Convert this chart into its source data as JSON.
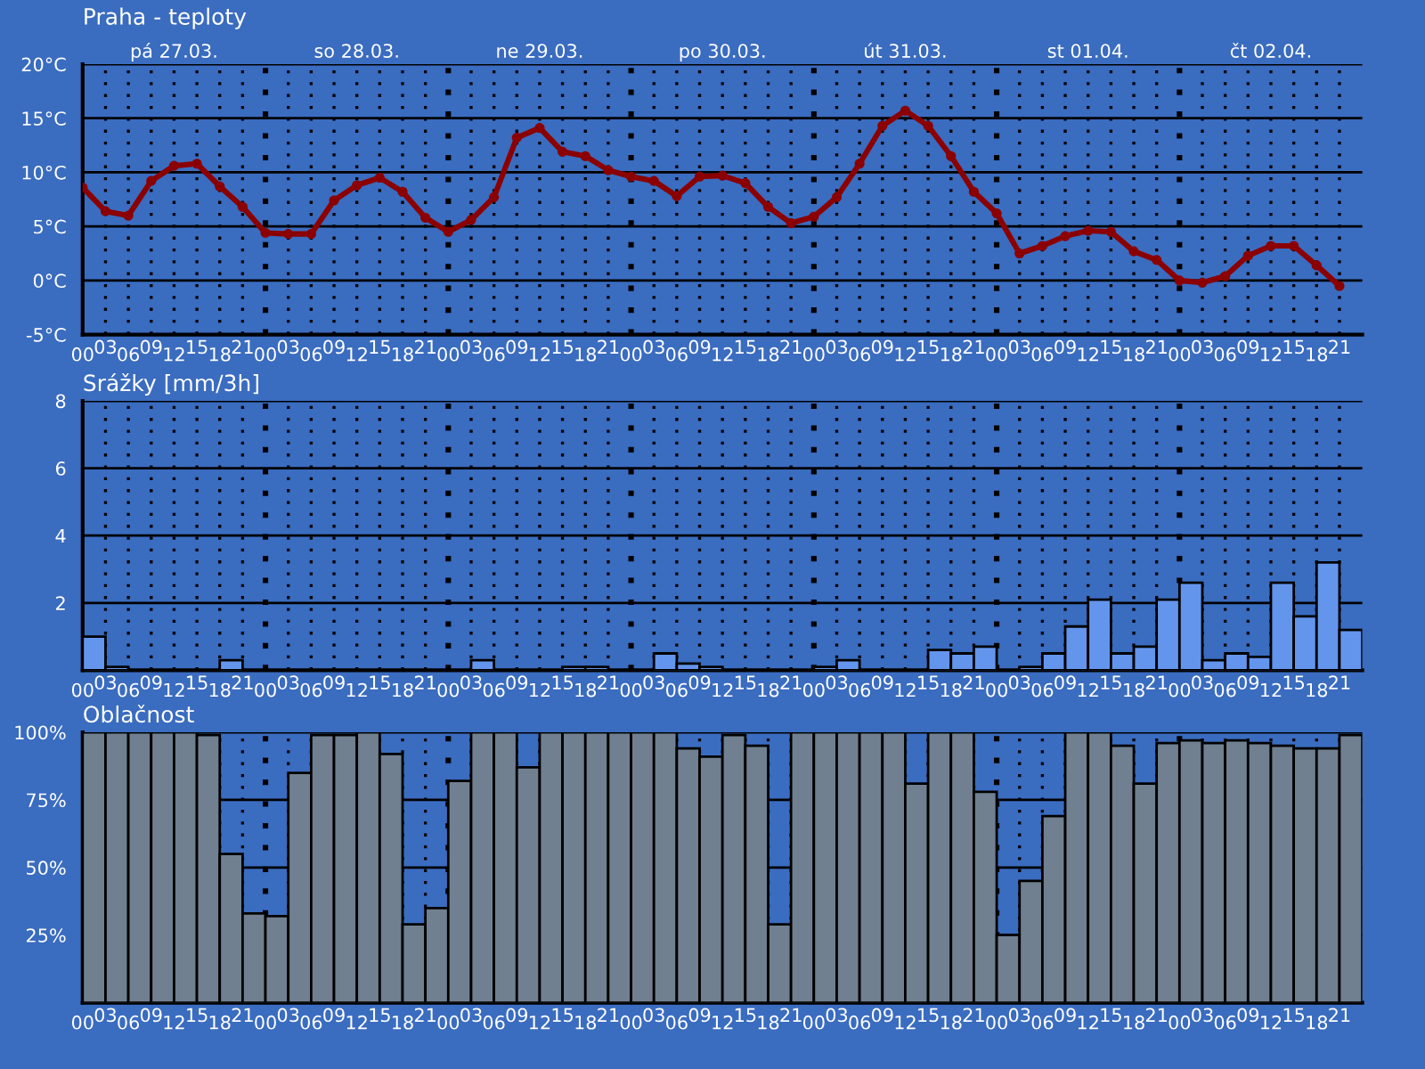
{
  "chart_data": [
    {
      "type": "line",
      "title": "Praha - teploty",
      "annotations": [
        "pá 27.03.",
        "so 28.03.",
        "ne 29.03.",
        "po 30.03.",
        "út 31.03.",
        "st 01.04.",
        "čt 02.04."
      ],
      "categories": [
        "00",
        "03",
        "06",
        "09",
        "12",
        "15",
        "18",
        "21",
        "00",
        "03",
        "06",
        "09",
        "12",
        "15",
        "18",
        "21",
        "00",
        "03",
        "06",
        "09",
        "12",
        "15",
        "18",
        "21",
        "00",
        "03",
        "06",
        "09",
        "12",
        "15",
        "18",
        "21",
        "00",
        "03",
        "06",
        "09",
        "12",
        "15",
        "18",
        "21",
        "00",
        "03",
        "06",
        "09",
        "12",
        "15",
        "18",
        "21",
        "00",
        "03",
        "06",
        "09",
        "12",
        "15",
        "18",
        "21"
      ],
      "values": [
        8.6,
        6.4,
        6.0,
        9.2,
        10.6,
        10.8,
        8.7,
        6.8,
        4.4,
        4.3,
        4.3,
        7.4,
        8.8,
        9.5,
        8.2,
        5.8,
        4.5,
        5.6,
        7.7,
        13.2,
        14.1,
        11.9,
        11.5,
        10.2,
        9.6,
        9.2,
        7.8,
        9.6,
        9.7,
        9.0,
        6.8,
        5.3,
        5.9,
        7.7,
        10.8,
        14.3,
        15.7,
        14.3,
        11.5,
        8.2,
        6.2,
        2.5,
        3.2,
        4.1,
        4.6,
        4.5,
        2.7,
        1.9,
        0.0,
        -0.2,
        0.4,
        2.3,
        3.2,
        3.2,
        1.4,
        -0.5
      ],
      "color": "#8b0000",
      "marker": "circle",
      "ylim": [
        -5,
        20
      ],
      "yticks": [
        {
          "value": -5,
          "label": "-5°C"
        },
        {
          "value": 0,
          "label": "0°C"
        },
        {
          "value": 5,
          "label": "5°C"
        },
        {
          "value": 10,
          "label": "10°C"
        },
        {
          "value": 15,
          "label": "15°C"
        },
        {
          "value": 20,
          "label": "20°C"
        }
      ],
      "grid": true
    },
    {
      "type": "bar",
      "title": "Srážky [mm/3h]",
      "categories": [
        "00",
        "03",
        "06",
        "09",
        "12",
        "15",
        "18",
        "21",
        "00",
        "03",
        "06",
        "09",
        "12",
        "15",
        "18",
        "21",
        "00",
        "03",
        "06",
        "09",
        "12",
        "15",
        "18",
        "21",
        "00",
        "03",
        "06",
        "09",
        "12",
        "15",
        "18",
        "21",
        "00",
        "03",
        "06",
        "09",
        "12",
        "15",
        "18",
        "21",
        "00",
        "03",
        "06",
        "09",
        "12",
        "15",
        "18",
        "21",
        "00",
        "03",
        "06",
        "09",
        "12",
        "15",
        "18",
        "21"
      ],
      "values": [
        1.0,
        0.1,
        null,
        null,
        null,
        null,
        0.3,
        null,
        null,
        null,
        null,
        null,
        null,
        null,
        null,
        null,
        null,
        0.3,
        null,
        null,
        null,
        0.1,
        0.1,
        null,
        null,
        0.5,
        0.2,
        0.1,
        null,
        null,
        null,
        null,
        0.1,
        0.3,
        null,
        null,
        null,
        0.6,
        0.5,
        0.7,
        null,
        0.1,
        0.5,
        1.3,
        2.1,
        0.5,
        0.7,
        2.1,
        2.6,
        0.3,
        0.5,
        0.4,
        2.6,
        1.6,
        3.2,
        1.2
      ],
      "color": "#6495ed",
      "ylim": [
        0,
        8
      ],
      "yticks": [
        {
          "value": 0,
          "label": null
        },
        2,
        4,
        6,
        8
      ],
      "grid": true
    },
    {
      "type": "bar",
      "title": "Oblačnost",
      "categories": [
        "00",
        "03",
        "06",
        "09",
        "12",
        "15",
        "18",
        "21",
        "00",
        "03",
        "06",
        "09",
        "12",
        "15",
        "18",
        "21",
        "00",
        "03",
        "06",
        "09",
        "12",
        "15",
        "18",
        "21",
        "00",
        "03",
        "06",
        "09",
        "12",
        "15",
        "18",
        "21",
        "00",
        "03",
        "06",
        "09",
        "12",
        "15",
        "18",
        "21",
        "00",
        "03",
        "06",
        "09",
        "12",
        "15",
        "18",
        "21",
        "00",
        "03",
        "06",
        "09",
        "12",
        "15",
        "18",
        "21"
      ],
      "values": [
        100,
        100,
        100,
        100,
        100,
        99,
        55,
        33,
        32,
        85,
        99,
        99,
        100,
        92,
        29,
        35,
        82,
        100,
        100,
        87,
        100,
        100,
        100,
        100,
        100,
        100,
        94,
        91,
        99,
        95,
        29,
        100,
        100,
        100,
        100,
        100,
        81,
        100,
        100,
        78,
        25,
        45,
        69,
        100,
        100,
        95,
        81,
        96,
        97,
        96,
        97,
        96,
        95,
        94,
        94,
        99
      ],
      "color": "#708090",
      "ylim": [
        0,
        100
      ],
      "yticks": [
        {
          "value": 0,
          "label": null
        },
        {
          "value": 25,
          "label": "25%"
        },
        {
          "value": 50,
          "label": "50%"
        },
        {
          "value": 75,
          "label": "75%"
        },
        {
          "value": 100,
          "label": "100%"
        }
      ],
      "grid": true
    }
  ]
}
